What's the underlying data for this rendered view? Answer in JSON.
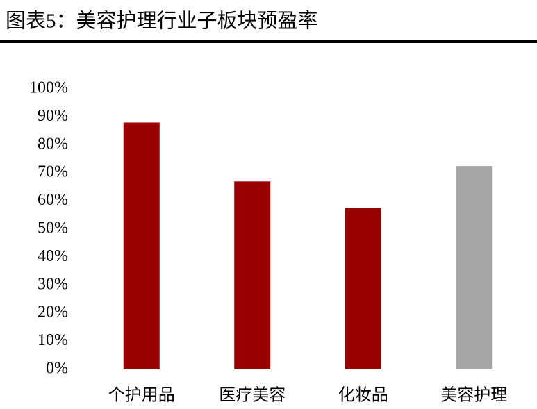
{
  "chart_data": {
    "type": "bar",
    "title": "图表5：美容护理行业子板块预盈率",
    "categories": [
      "个护用品",
      "医疗美容",
      "化妆品",
      "美容护理"
    ],
    "values": [
      88,
      67,
      57.5,
      72.5
    ],
    "colors": [
      "#990000",
      "#990000",
      "#990000",
      "#a6a6a6"
    ],
    "ylim": [
      0,
      100
    ],
    "yticks": [
      {
        "value": 0,
        "label": "0%"
      },
      {
        "value": 10,
        "label": "10%"
      },
      {
        "value": 20,
        "label": "20%"
      },
      {
        "value": 30,
        "label": "30%"
      },
      {
        "value": 40,
        "label": "40%"
      },
      {
        "value": 50,
        "label": "50%"
      },
      {
        "value": 60,
        "label": "60%"
      },
      {
        "value": 70,
        "label": "70%"
      },
      {
        "value": 80,
        "label": "80%"
      },
      {
        "value": 90,
        "label": "90%"
      },
      {
        "value": 100,
        "label": "100%"
      }
    ],
    "grid": false
  }
}
